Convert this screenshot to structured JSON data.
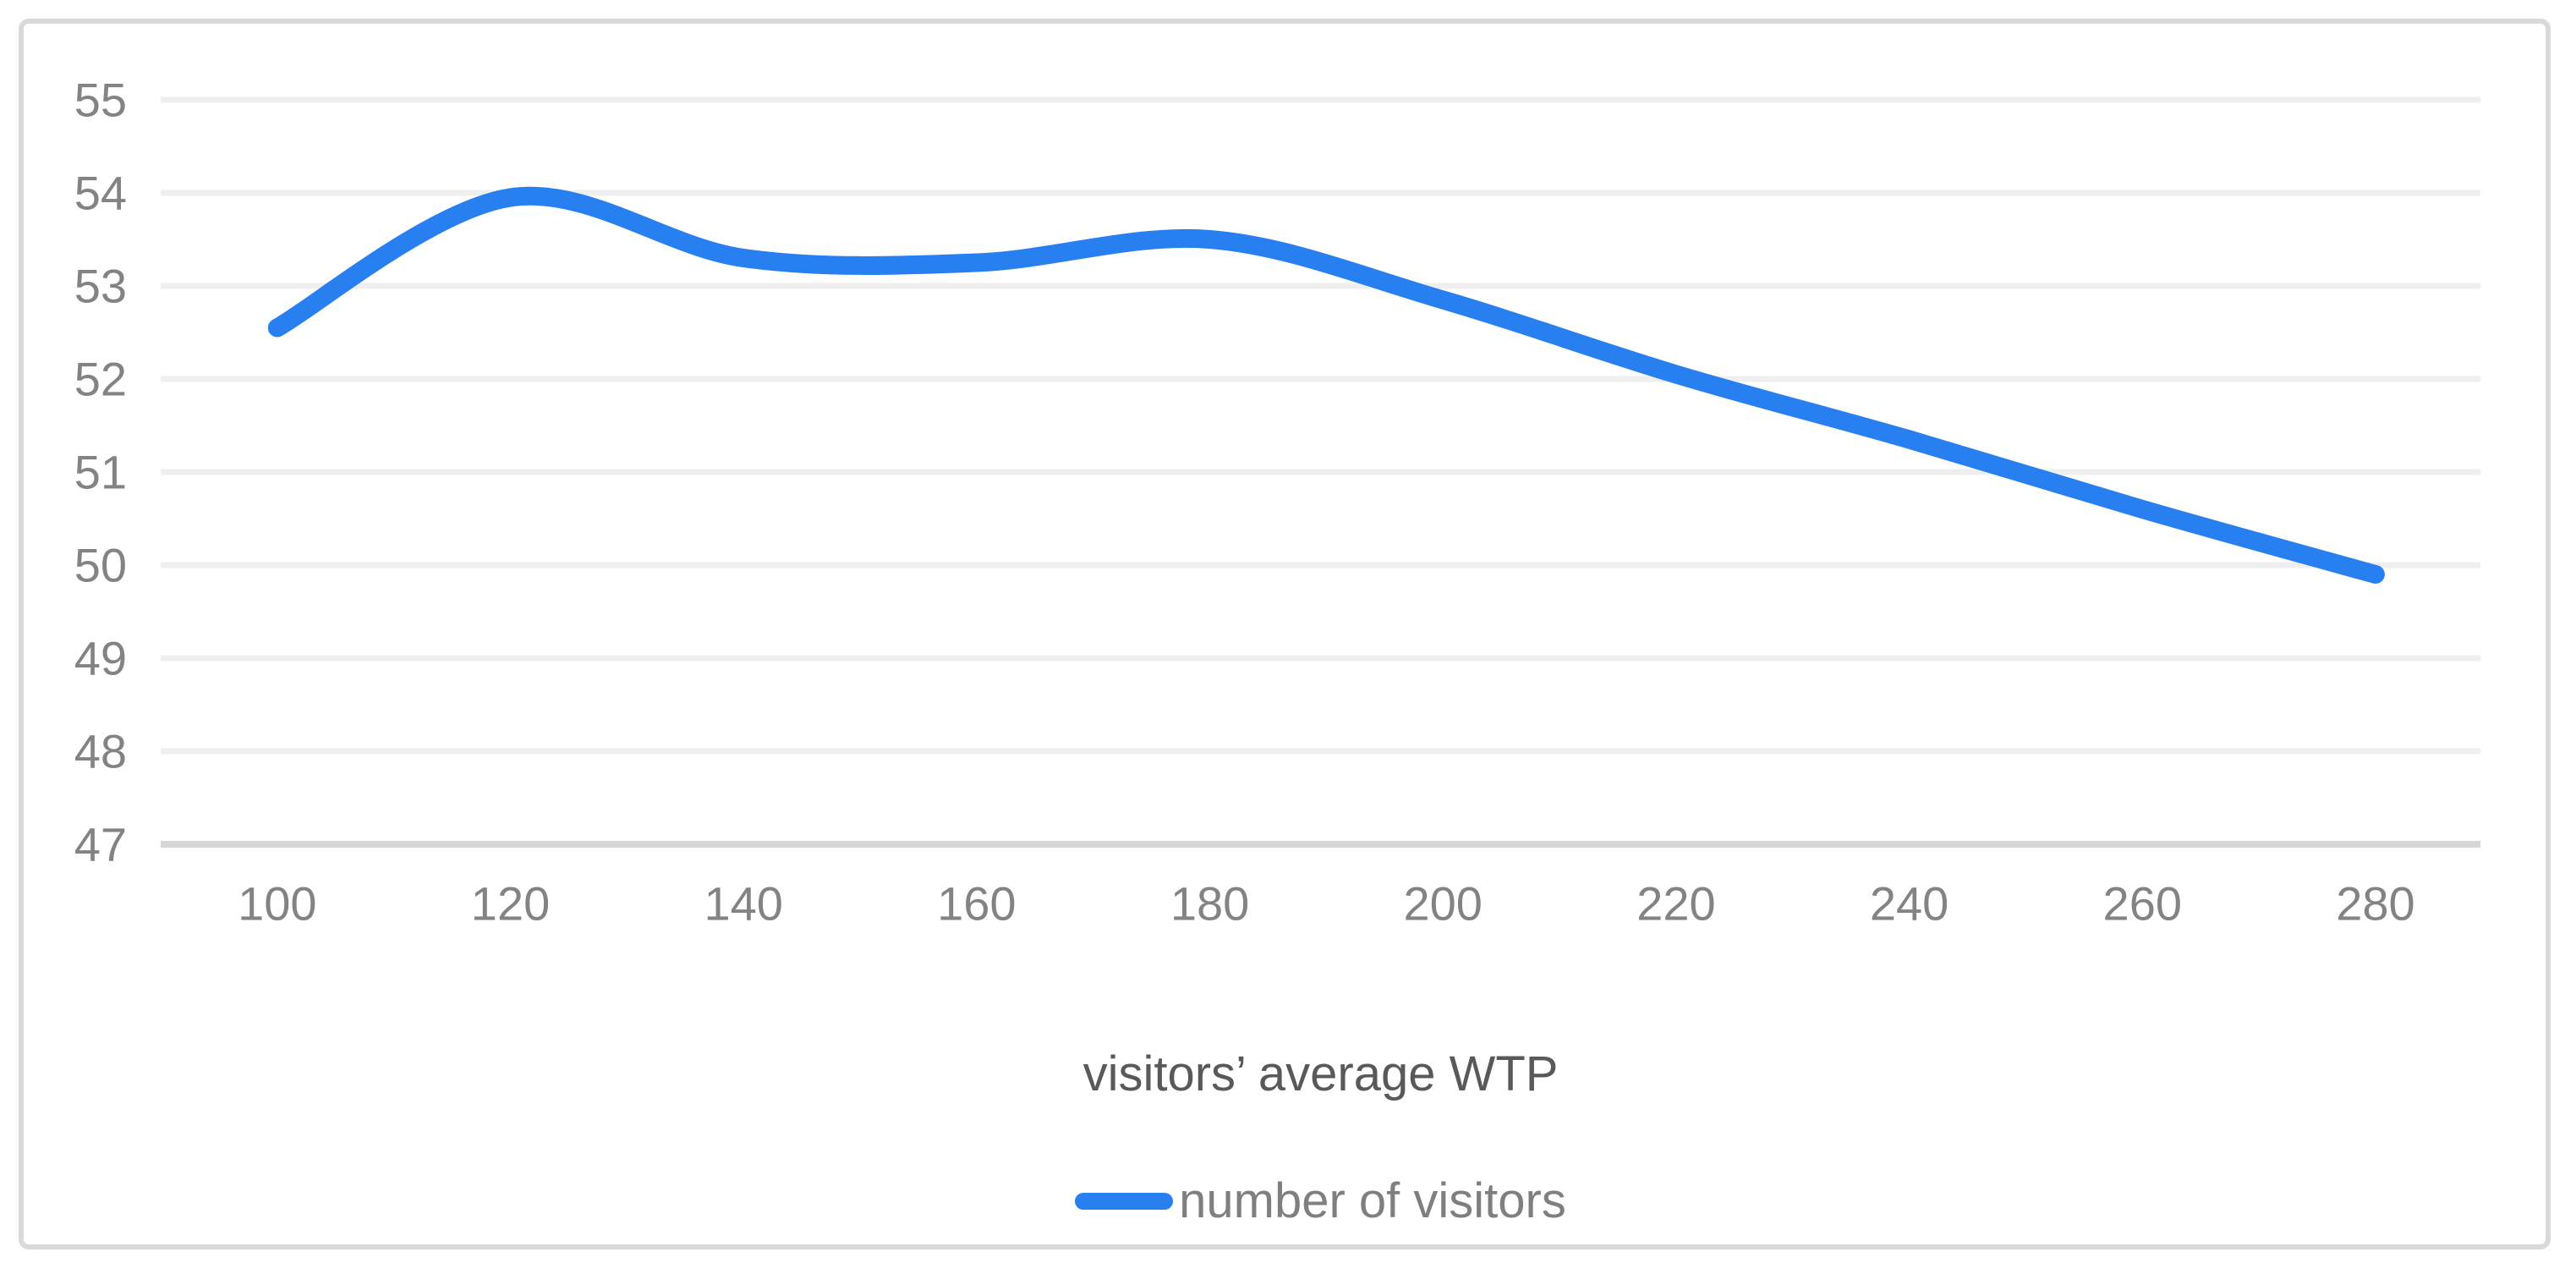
{
  "chart_data": {
    "type": "line",
    "title": "",
    "xlabel": "visitors’ average WTP",
    "ylabel": "",
    "legend_position": "bottom",
    "grid": "horizontal",
    "smooth": true,
    "xlim": [
      90,
      289
    ],
    "ylim": [
      47,
      55
    ],
    "x_ticks": [
      100,
      120,
      140,
      160,
      180,
      200,
      220,
      240,
      260,
      280
    ],
    "y_ticks": [
      47,
      48,
      49,
      50,
      51,
      52,
      53,
      54,
      55
    ],
    "series": [
      {
        "name": "number of visitors",
        "x": [
          100,
          120,
          140,
          160,
          180,
          200,
          220,
          240,
          260,
          280
        ],
        "y": [
          52.55,
          53.95,
          53.3,
          53.25,
          53.5,
          52.85,
          52.05,
          51.35,
          50.6,
          49.9
        ]
      }
    ],
    "colors": {
      "line": "#2880f0",
      "gridline": "#efefef",
      "axis_line": "#d6d6d6",
      "tick_label": "#838383",
      "axis_title": "#595959",
      "legend_text": "#7f7f7f",
      "frame_border": "#d9d9d9"
    }
  }
}
